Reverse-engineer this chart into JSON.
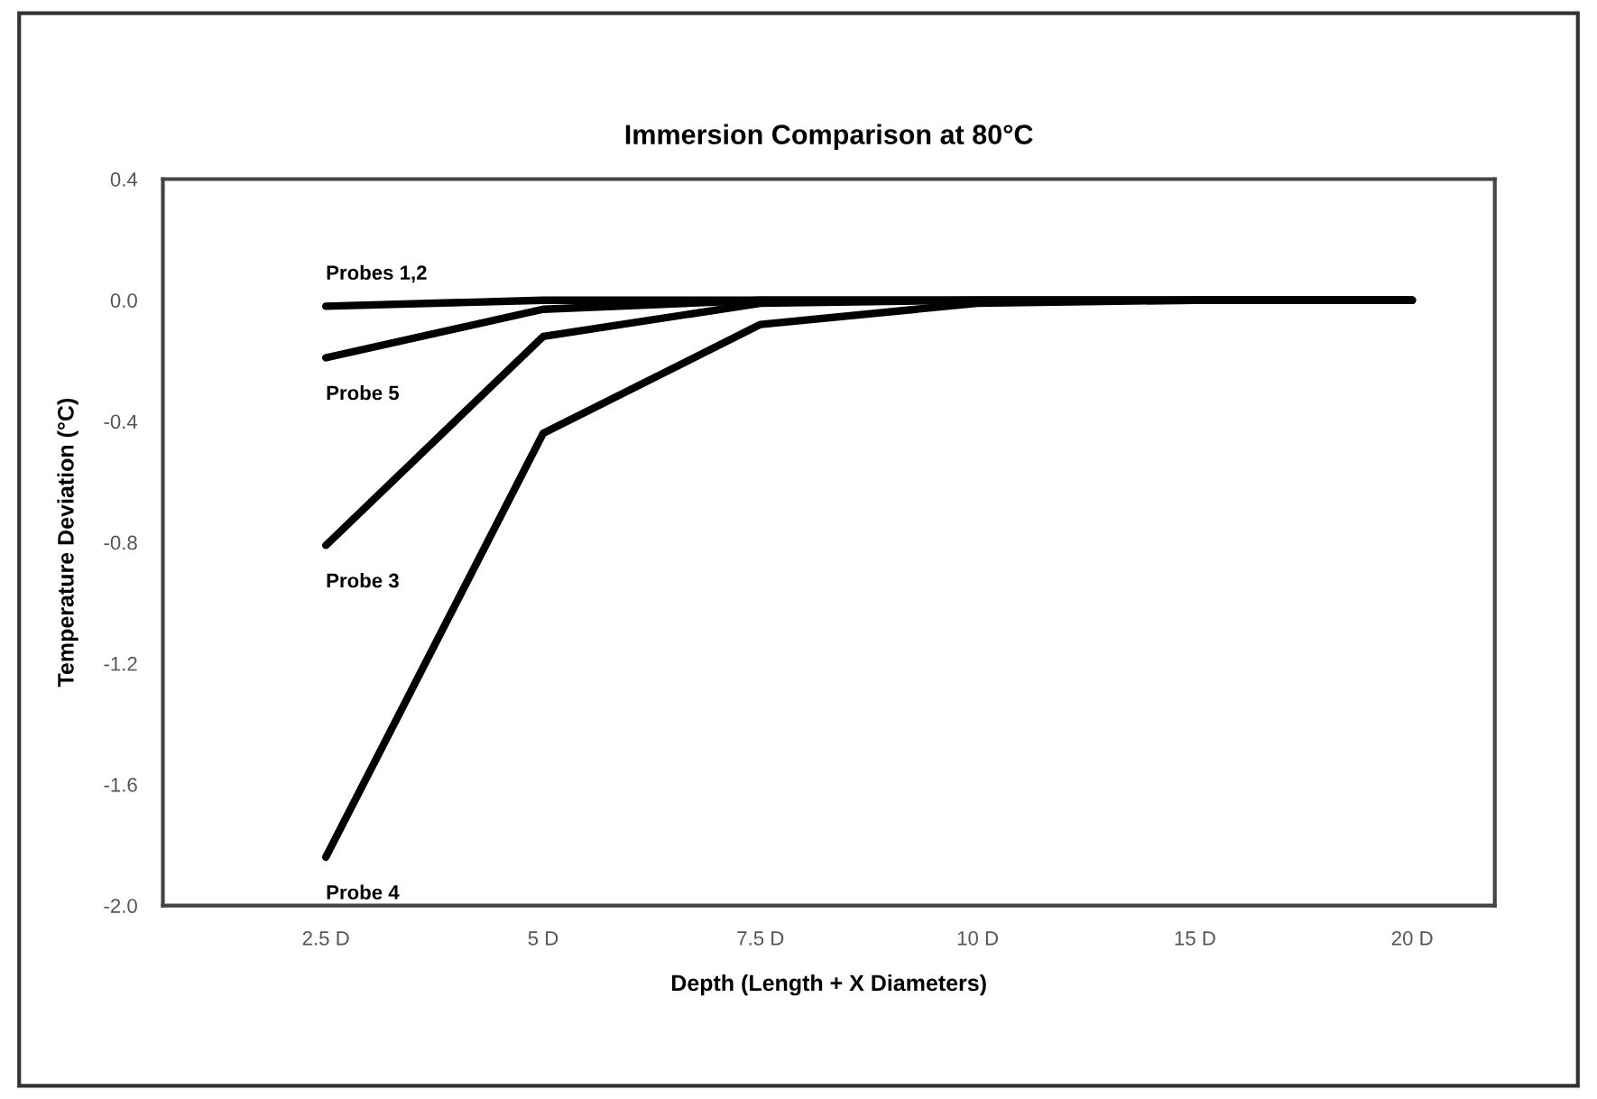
{
  "chart_data": {
    "type": "line",
    "title": "Immersion Comparison at 80°C",
    "xlabel": "Depth (Length + X Diameters)",
    "ylabel": "Temperature Deviation (°C)",
    "categories": [
      "2.5 D",
      "5 D",
      "7.5 D",
      "10 D",
      "15 D",
      "20 D"
    ],
    "series": [
      {
        "name": "Probes 1,2",
        "color": "#000000",
        "values": [
          -0.02,
          0.0,
          0.0,
          0.0,
          0.0,
          0.0
        ]
      },
      {
        "name": "Probe 5",
        "color": "#000000",
        "values": [
          -0.19,
          -0.03,
          0.0,
          0.0,
          0.0,
          0.0
        ]
      },
      {
        "name": "Probe 3",
        "color": "#000000",
        "values": [
          -0.81,
          -0.12,
          -0.01,
          0.0,
          0.0,
          0.0
        ]
      },
      {
        "name": "Probe 4",
        "color": "#000000",
        "values": [
          -1.84,
          -0.44,
          -0.08,
          -0.01,
          0.0,
          0.0
        ]
      }
    ],
    "ylim": [
      -2.0,
      0.4
    ],
    "yticks": [
      {
        "value": 0.4,
        "label": "0.4"
      },
      {
        "value": 0.0,
        "label": "0.0"
      },
      {
        "value": -0.4,
        "label": "-0.4"
      },
      {
        "value": -0.8,
        "label": "-0.8"
      },
      {
        "value": -1.2,
        "label": "-1.2"
      },
      {
        "value": -1.6,
        "label": "-1.6"
      },
      {
        "value": -2.0,
        "label": "-2.0"
      }
    ],
    "grid": false,
    "legend": false,
    "marker": "none",
    "line_style": "solid"
  }
}
